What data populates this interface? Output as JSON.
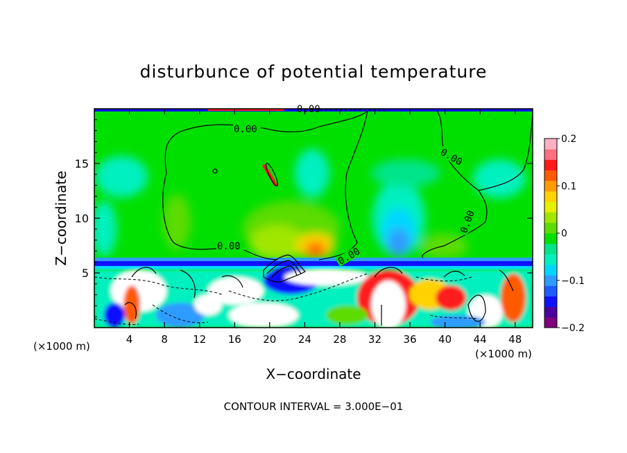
{
  "chart_data": {
    "type": "heatmap",
    "title": "disturbunce of potential temperature",
    "xlabel": "X−coordinate",
    "ylabel": "Z−coordinate",
    "x_unit": "(×1000 m)",
    "y_unit": "(×1000 m)",
    "xlim": [
      0,
      50
    ],
    "ylim": [
      0,
      20
    ],
    "x_ticks": [
      "4",
      "8",
      "12",
      "16",
      "20",
      "24",
      "28",
      "32",
      "36",
      "40",
      "44",
      "48"
    ],
    "y_ticks": [
      "5",
      "10",
      "15"
    ],
    "colorbar": {
      "range": [
        -0.2,
        0.2
      ],
      "tick_labels": [
        "0.2",
        "0.1",
        "0",
        "−0.1",
        "−0.2"
      ],
      "colors": [
        "#800080",
        "#4b00a0",
        "#1010ff",
        "#1e5cff",
        "#2e9bff",
        "#00d7ff",
        "#00f0c0",
        "#00e58a",
        "#00e000",
        "#5bdc00",
        "#a0e600",
        "#e6f000",
        "#ffd200",
        "#ff9a00",
        "#ff5a00",
        "#ff1a1a",
        "#ff6f80",
        "#ffb0c0"
      ]
    },
    "contour_labels": [
      "0.00",
      "0.00",
      "0.00",
      "0.00",
      "0.00",
      "0.00"
    ],
    "contour_interval_text": "CONTOUR INTERVAL = 3.000E−01"
  }
}
